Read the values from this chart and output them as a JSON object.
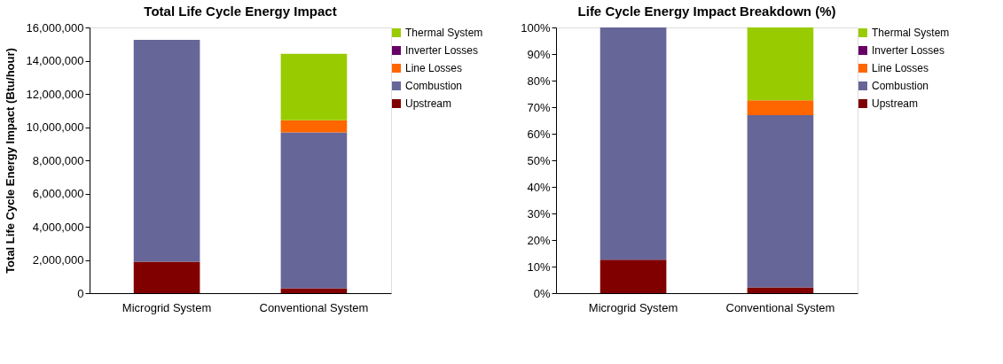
{
  "chart_data": [
    {
      "type": "bar",
      "title": "Total Life Cycle Energy Impact",
      "ylabel": "Total Life Cycle Energy Impact (Btu/hour)",
      "categories": [
        "Microgrid System",
        "Conventional System"
      ],
      "stacked": true,
      "legend": "right",
      "ylim": [
        0,
        16000000
      ],
      "yticks": [
        {
          "value": 0,
          "label": "0"
        },
        {
          "value": 2000000,
          "label": "2,000,000"
        },
        {
          "value": 4000000,
          "label": "4,000,000"
        },
        {
          "value": 6000000,
          "label": "6,000,000"
        },
        {
          "value": 8000000,
          "label": "8,000,000"
        },
        {
          "value": 10000000,
          "label": "10,000,000"
        },
        {
          "value": 12000000,
          "label": "12,000,000"
        },
        {
          "value": 14000000,
          "label": "14,000,000"
        },
        {
          "value": 16000000,
          "label": "16,000,000"
        }
      ],
      "series": [
        {
          "name": "Upstream",
          "color": "#800000",
          "values": [
            1890000,
            300000
          ]
        },
        {
          "name": "Combustion",
          "color": "#666699",
          "values": [
            13370000,
            9380000
          ]
        },
        {
          "name": "Line Losses",
          "color": "#ff6600",
          "values": [
            0,
            730000
          ]
        },
        {
          "name": "Inverter Losses",
          "color": "#660066",
          "values": [
            0,
            0
          ]
        },
        {
          "name": "Thermal System",
          "color": "#99cc00",
          "values": [
            0,
            4000000
          ]
        }
      ]
    },
    {
      "type": "bar",
      "title": "Life Cycle Energy Impact Breakdown (%)",
      "categories": [
        "Microgrid System",
        "Conventional System"
      ],
      "stacked": true,
      "legend": "right",
      "ylim": [
        0,
        100
      ],
      "yticks": [
        {
          "value": 0,
          "label": "0%"
        },
        {
          "value": 10,
          "label": "10%"
        },
        {
          "value": 20,
          "label": "20%"
        },
        {
          "value": 30,
          "label": "30%"
        },
        {
          "value": 40,
          "label": "40%"
        },
        {
          "value": 50,
          "label": "50%"
        },
        {
          "value": 60,
          "label": "60%"
        },
        {
          "value": 70,
          "label": "70%"
        },
        {
          "value": 80,
          "label": "80%"
        },
        {
          "value": 90,
          "label": "90%"
        },
        {
          "value": 100,
          "label": "100%"
        }
      ],
      "series": [
        {
          "name": "Upstream",
          "color": "#800000",
          "values": [
            12.6,
            2.2
          ]
        },
        {
          "name": "Combustion",
          "color": "#666699",
          "values": [
            87.4,
            64.8
          ]
        },
        {
          "name": "Line Losses",
          "color": "#ff6600",
          "values": [
            0,
            5.6
          ]
        },
        {
          "name": "Inverter Losses",
          "color": "#660066",
          "values": [
            0,
            0
          ]
        },
        {
          "name": "Thermal System",
          "color": "#99cc00",
          "values": [
            0,
            27.4
          ]
        }
      ]
    }
  ]
}
